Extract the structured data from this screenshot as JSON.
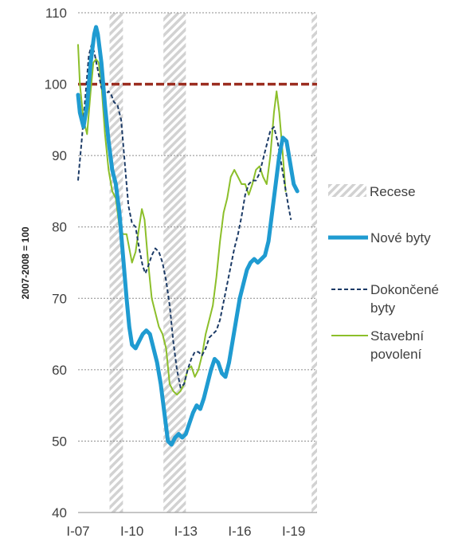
{
  "chart_data": {
    "type": "line",
    "title": "",
    "ylabel": "2007-2008 = 100",
    "xlabel": "",
    "ylim": [
      40,
      110
    ],
    "yticks": [
      40,
      50,
      60,
      70,
      80,
      90,
      100,
      110
    ],
    "xlim": [
      2007,
      2020.6
    ],
    "xticks": [
      {
        "label": "I-07",
        "value": 2007
      },
      {
        "label": "I-10",
        "value": 2010
      },
      {
        "label": "I-13",
        "value": 2013
      },
      {
        "label": "I-16",
        "value": 2016
      },
      {
        "label": "I-19",
        "value": 2019
      }
    ],
    "grid": true,
    "legend_position": "right",
    "reference_line": {
      "value": 100,
      "color": "#9b2d20"
    },
    "recessions": {
      "name": "Recese",
      "periods": [
        [
          2008.75,
          2009.5
        ],
        [
          2011.75,
          2013.0
        ],
        [
          2020.0,
          2020.6
        ]
      ]
    },
    "series": [
      {
        "name": "Nové byty",
        "color": "#1f9bd1",
        "style": "solid-thick",
        "points": [
          [
            2007.0,
            98.5
          ],
          [
            2007.1,
            96
          ],
          [
            2007.3,
            94
          ],
          [
            2007.5,
            97
          ],
          [
            2007.7,
            103
          ],
          [
            2007.9,
            107
          ],
          [
            2008.0,
            108
          ],
          [
            2008.1,
            107
          ],
          [
            2008.3,
            103
          ],
          [
            2008.5,
            97
          ],
          [
            2008.7,
            92
          ],
          [
            2008.9,
            88
          ],
          [
            2009.1,
            86
          ],
          [
            2009.3,
            82
          ],
          [
            2009.5,
            76
          ],
          [
            2009.7,
            70
          ],
          [
            2009.85,
            66
          ],
          [
            2010.0,
            63.5
          ],
          [
            2010.2,
            63
          ],
          [
            2010.4,
            64
          ],
          [
            2010.6,
            65
          ],
          [
            2010.8,
            65.5
          ],
          [
            2011.0,
            65
          ],
          [
            2011.2,
            63
          ],
          [
            2011.4,
            61
          ],
          [
            2011.6,
            58
          ],
          [
            2011.8,
            54
          ],
          [
            2012.0,
            50
          ],
          [
            2012.2,
            49.5
          ],
          [
            2012.4,
            50.5
          ],
          [
            2012.6,
            51
          ],
          [
            2012.8,
            50.5
          ],
          [
            2013.0,
            51
          ],
          [
            2013.2,
            52.5
          ],
          [
            2013.4,
            54
          ],
          [
            2013.6,
            55
          ],
          [
            2013.8,
            54.5
          ],
          [
            2014.0,
            56
          ],
          [
            2014.2,
            58
          ],
          [
            2014.4,
            60
          ],
          [
            2014.6,
            61.5
          ],
          [
            2014.8,
            61
          ],
          [
            2015.0,
            59.5
          ],
          [
            2015.2,
            59
          ],
          [
            2015.4,
            61
          ],
          [
            2015.6,
            64
          ],
          [
            2015.8,
            67
          ],
          [
            2016.0,
            70
          ],
          [
            2016.2,
            72
          ],
          [
            2016.4,
            74
          ],
          [
            2016.6,
            75
          ],
          [
            2016.8,
            75.5
          ],
          [
            2017.0,
            75
          ],
          [
            2017.2,
            75.5
          ],
          [
            2017.4,
            76
          ],
          [
            2017.6,
            78
          ],
          [
            2017.8,
            82
          ],
          [
            2018.0,
            86
          ],
          [
            2018.2,
            90
          ],
          [
            2018.4,
            92.5
          ],
          [
            2018.6,
            92
          ],
          [
            2018.8,
            89
          ],
          [
            2019.0,
            86
          ],
          [
            2019.2,
            85
          ]
        ]
      },
      {
        "name": "Dokončené byty",
        "color": "#1b3a66",
        "style": "dashed",
        "points": [
          [
            2007.0,
            86.5
          ],
          [
            2007.2,
            92
          ],
          [
            2007.4,
            98
          ],
          [
            2007.6,
            104
          ],
          [
            2007.75,
            105.5
          ],
          [
            2007.9,
            104.5
          ],
          [
            2008.1,
            102
          ],
          [
            2008.3,
            99.5
          ],
          [
            2008.5,
            98.5
          ],
          [
            2008.7,
            99
          ],
          [
            2008.85,
            98.5
          ],
          [
            2009.0,
            97.5
          ],
          [
            2009.2,
            97
          ],
          [
            2009.4,
            95
          ],
          [
            2009.6,
            89
          ],
          [
            2009.8,
            83
          ],
          [
            2010.0,
            80.5
          ],
          [
            2010.2,
            80
          ],
          [
            2010.4,
            77
          ],
          [
            2010.6,
            74.5
          ],
          [
            2010.75,
            73.5
          ],
          [
            2010.9,
            74.5
          ],
          [
            2011.1,
            76
          ],
          [
            2011.3,
            77
          ],
          [
            2011.5,
            76.5
          ],
          [
            2011.7,
            75
          ],
          [
            2011.9,
            72.5
          ],
          [
            2012.1,
            69
          ],
          [
            2012.3,
            64
          ],
          [
            2012.5,
            60
          ],
          [
            2012.7,
            57.5
          ],
          [
            2012.9,
            58
          ],
          [
            2013.1,
            60
          ],
          [
            2013.3,
            61.5
          ],
          [
            2013.5,
            62.5
          ],
          [
            2013.7,
            62.5
          ],
          [
            2013.9,
            62
          ],
          [
            2014.1,
            63
          ],
          [
            2014.3,
            64.5
          ],
          [
            2014.5,
            65
          ],
          [
            2014.7,
            65.5
          ],
          [
            2014.9,
            67
          ],
          [
            2015.1,
            69.5
          ],
          [
            2015.3,
            72
          ],
          [
            2015.5,
            74.5
          ],
          [
            2015.7,
            77
          ],
          [
            2015.9,
            79
          ],
          [
            2016.1,
            81.5
          ],
          [
            2016.3,
            84.5
          ],
          [
            2016.5,
            86
          ],
          [
            2016.7,
            86.5
          ],
          [
            2016.9,
            86.5
          ],
          [
            2017.1,
            87.5
          ],
          [
            2017.3,
            89.5
          ],
          [
            2017.5,
            91.5
          ],
          [
            2017.7,
            93.5
          ],
          [
            2017.9,
            94
          ],
          [
            2018.1,
            92
          ],
          [
            2018.3,
            89
          ],
          [
            2018.5,
            86
          ],
          [
            2018.7,
            83
          ],
          [
            2018.85,
            81
          ]
        ]
      },
      {
        "name": "Stavební povolení",
        "color": "#8cbf2a",
        "style": "solid",
        "points": [
          [
            2007.0,
            105.5
          ],
          [
            2007.1,
            100
          ],
          [
            2007.3,
            95
          ],
          [
            2007.5,
            93
          ],
          [
            2007.7,
            99
          ],
          [
            2007.85,
            103
          ],
          [
            2008.0,
            103.5
          ],
          [
            2008.15,
            103
          ],
          [
            2008.3,
            100
          ],
          [
            2008.5,
            93
          ],
          [
            2008.7,
            88
          ],
          [
            2008.9,
            85
          ],
          [
            2009.1,
            84
          ],
          [
            2009.3,
            80
          ],
          [
            2009.5,
            79
          ],
          [
            2009.7,
            79
          ],
          [
            2009.85,
            77
          ],
          [
            2010.0,
            75
          ],
          [
            2010.2,
            76.5
          ],
          [
            2010.4,
            80
          ],
          [
            2010.55,
            82.5
          ],
          [
            2010.7,
            81
          ],
          [
            2010.9,
            75
          ],
          [
            2011.1,
            70
          ],
          [
            2011.3,
            68
          ],
          [
            2011.5,
            66
          ],
          [
            2011.7,
            65
          ],
          [
            2011.9,
            63
          ],
          [
            2012.1,
            58
          ],
          [
            2012.3,
            57
          ],
          [
            2012.5,
            56.5
          ],
          [
            2012.7,
            57
          ],
          [
            2012.9,
            58
          ],
          [
            2013.1,
            60
          ],
          [
            2013.3,
            60.5
          ],
          [
            2013.5,
            59
          ],
          [
            2013.7,
            60
          ],
          [
            2013.9,
            62
          ],
          [
            2014.1,
            65
          ],
          [
            2014.3,
            67
          ],
          [
            2014.5,
            69
          ],
          [
            2014.7,
            73
          ],
          [
            2014.9,
            78
          ],
          [
            2015.1,
            82
          ],
          [
            2015.3,
            84
          ],
          [
            2015.5,
            87
          ],
          [
            2015.7,
            88
          ],
          [
            2015.9,
            87
          ],
          [
            2016.1,
            86
          ],
          [
            2016.3,
            86
          ],
          [
            2016.5,
            84.5
          ],
          [
            2016.7,
            86
          ],
          [
            2016.9,
            88
          ],
          [
            2017.1,
            88.5
          ],
          [
            2017.3,
            87
          ],
          [
            2017.5,
            86
          ],
          [
            2017.7,
            90
          ],
          [
            2017.9,
            96
          ],
          [
            2018.05,
            99
          ],
          [
            2018.2,
            96
          ],
          [
            2018.4,
            90
          ],
          [
            2018.55,
            85
          ]
        ]
      }
    ]
  },
  "legend": {
    "recession_label": "Recese",
    "items": [
      {
        "label_lines": [
          "Nové byty"
        ]
      },
      {
        "label_lines": [
          "Dokončené",
          "byty"
        ]
      },
      {
        "label_lines": [
          "Stavební",
          "povolení"
        ]
      }
    ]
  }
}
